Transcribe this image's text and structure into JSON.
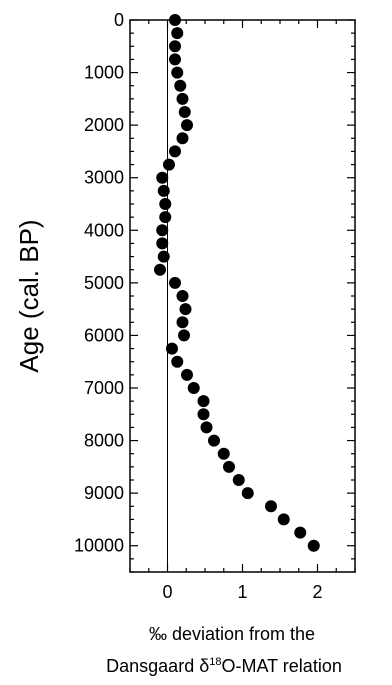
{
  "chart_data": {
    "type": "scatter",
    "title": "",
    "xlabel_line1": "‰ deviation from the",
    "xlabel_line2_prefix": "Dansgaard δ",
    "xlabel_line2_sup": "18",
    "xlabel_line2_suffix": "O-MAT relation",
    "ylabel": "Age (cal. BP)",
    "xlim": [
      -0.5,
      2.5
    ],
    "ylim": [
      0,
      10500
    ],
    "y_inverted": true,
    "xticks": [
      0,
      1,
      2
    ],
    "xtick_labels": [
      "0",
      "1",
      "2"
    ],
    "yticks": [
      0,
      1000,
      2000,
      3000,
      4000,
      5000,
      6000,
      7000,
      8000,
      9000,
      10000
    ],
    "ytick_labels": [
      "0",
      "1000",
      "2000",
      "3000",
      "4000",
      "5000",
      "6000",
      "7000",
      "8000",
      "9000",
      "10000"
    ],
    "reference_line_x": 0,
    "grid": false,
    "marker_color": "#000000",
    "points": [
      {
        "x": 0.1,
        "y": 0
      },
      {
        "x": 0.13,
        "y": 250
      },
      {
        "x": 0.1,
        "y": 500
      },
      {
        "x": 0.1,
        "y": 750
      },
      {
        "x": 0.13,
        "y": 1000
      },
      {
        "x": 0.17,
        "y": 1250
      },
      {
        "x": 0.2,
        "y": 1500
      },
      {
        "x": 0.23,
        "y": 1750
      },
      {
        "x": 0.26,
        "y": 2000
      },
      {
        "x": 0.2,
        "y": 2250
      },
      {
        "x": 0.1,
        "y": 2500
      },
      {
        "x": 0.02,
        "y": 2750
      },
      {
        "x": -0.07,
        "y": 3000
      },
      {
        "x": -0.05,
        "y": 3250
      },
      {
        "x": -0.03,
        "y": 3500
      },
      {
        "x": -0.03,
        "y": 3750
      },
      {
        "x": -0.07,
        "y": 4000
      },
      {
        "x": -0.07,
        "y": 4250
      },
      {
        "x": -0.05,
        "y": 4500
      },
      {
        "x": -0.1,
        "y": 4750
      },
      {
        "x": 0.1,
        "y": 5000
      },
      {
        "x": 0.2,
        "y": 5250
      },
      {
        "x": 0.24,
        "y": 5500
      },
      {
        "x": 0.2,
        "y": 5750
      },
      {
        "x": 0.22,
        "y": 6000
      },
      {
        "x": 0.06,
        "y": 6250
      },
      {
        "x": 0.13,
        "y": 6500
      },
      {
        "x": 0.26,
        "y": 6750
      },
      {
        "x": 0.35,
        "y": 7000
      },
      {
        "x": 0.48,
        "y": 7250
      },
      {
        "x": 0.48,
        "y": 7500
      },
      {
        "x": 0.52,
        "y": 7750
      },
      {
        "x": 0.62,
        "y": 8000
      },
      {
        "x": 0.75,
        "y": 8250
      },
      {
        "x": 0.82,
        "y": 8500
      },
      {
        "x": 0.95,
        "y": 8750
      },
      {
        "x": 1.07,
        "y": 9000
      },
      {
        "x": 1.38,
        "y": 9250
      },
      {
        "x": 1.55,
        "y": 9500
      },
      {
        "x": 1.77,
        "y": 9750
      },
      {
        "x": 1.95,
        "y": 10000
      }
    ]
  }
}
